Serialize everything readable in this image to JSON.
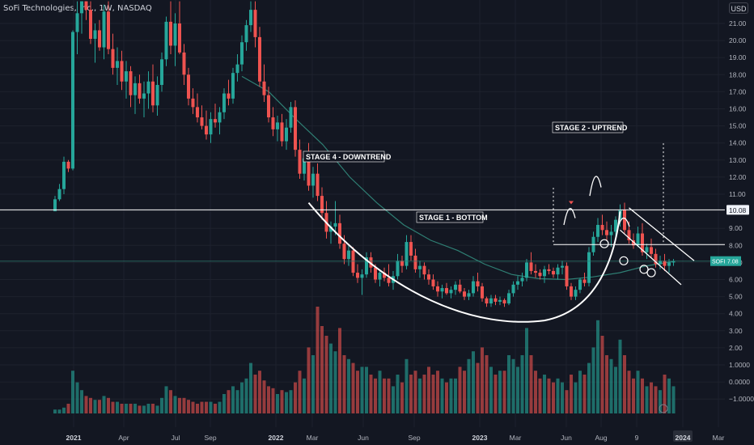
{
  "header": {
    "title": "SoFi Technologies, Inc., 1W, NASDAQ"
  },
  "currency_button": {
    "label": "USD"
  },
  "price_badges": {
    "resistance": "10.08",
    "current": "SOFI",
    "current_sub": "7.08"
  },
  "colors": {
    "up": "#26a69a",
    "down": "#ef5350",
    "background": "#131722",
    "grid": "#1e222d",
    "ma": "#2f7f74",
    "text": "#b2b5be",
    "line": "#ffffff"
  },
  "annotations": {
    "stage4": "STAGE 4 - DOWNTREND",
    "stage1": "STAGE 1 - BOTTOM",
    "stage2": "STAGE 2 - UPTREND"
  },
  "chart_data": {
    "type": "candlestick",
    "title": "SoFi Technologies, Inc., 1W, NASDAQ",
    "x_ticks": [
      "2021",
      "Apr",
      "Jul",
      "Sep",
      "2022",
      "Mar",
      "Jun",
      "Sep",
      "2023",
      "Mar",
      "Jun",
      "Aug",
      "9",
      "2024",
      "Mar"
    ],
    "y_ticks": [
      "21.00",
      "20.00",
      "19.00",
      "18.00",
      "17.00",
      "16.00",
      "15.00",
      "14.00",
      "13.00",
      "12.00",
      "11.00",
      "10.00",
      "9.00",
      "8.00",
      "7.00",
      "6.00",
      "5.00",
      "4.00",
      "3.00",
      "2.00",
      "1.0000",
      "0.0000",
      "−1.0000"
    ],
    "y_range": [
      -1.0,
      22.0
    ],
    "resistance_level": 10.08,
    "secondary_level": 8.05,
    "current_price_level": 7.08,
    "x_ticks_end_indicator": "2024",
    "candles_ohlc": [
      [
        10.0,
        10.9,
        10.2,
        10.7
      ],
      [
        10.7,
        11.6,
        10.6,
        11.3
      ],
      [
        11.3,
        13.2,
        11.0,
        12.9
      ],
      [
        12.9,
        13.0,
        12.3,
        12.5
      ],
      [
        12.5,
        20.6,
        12.4,
        20.5
      ],
      [
        20.5,
        24.5,
        19.2,
        21.6
      ],
      [
        21.6,
        23.8,
        20.4,
        22.8
      ],
      [
        22.8,
        23.5,
        21.2,
        21.8
      ],
      [
        21.8,
        22.6,
        19.8,
        20.1
      ],
      [
        20.1,
        21.0,
        18.7,
        20.6
      ],
      [
        20.6,
        21.2,
        19.4,
        19.6
      ],
      [
        19.6,
        22.1,
        18.9,
        21.7
      ],
      [
        21.7,
        22.6,
        19.2,
        19.5
      ],
      [
        19.5,
        20.4,
        18.0,
        18.4
      ],
      [
        18.4,
        19.6,
        17.4,
        18.8
      ],
      [
        18.8,
        19.4,
        17.1,
        17.6
      ],
      [
        17.6,
        18.8,
        16.6,
        18.2
      ],
      [
        18.2,
        18.5,
        16.1,
        16.8
      ],
      [
        16.8,
        17.9,
        15.7,
        17.5
      ],
      [
        17.5,
        18.0,
        16.3,
        16.6
      ],
      [
        16.6,
        17.6,
        15.5,
        16.9
      ],
      [
        16.9,
        18.2,
        16.0,
        17.6
      ],
      [
        17.6,
        18.6,
        15.8,
        16.2
      ],
      [
        16.2,
        17.9,
        15.6,
        17.4
      ],
      [
        17.4,
        19.3,
        17.0,
        18.9
      ],
      [
        18.9,
        21.4,
        18.5,
        21.1
      ],
      [
        21.1,
        22.8,
        19.2,
        19.7
      ],
      [
        19.7,
        21.6,
        18.5,
        21.0
      ],
      [
        21.0,
        22.6,
        19.2,
        19.3
      ],
      [
        19.3,
        19.8,
        17.4,
        18.0
      ],
      [
        18.0,
        18.4,
        16.2,
        16.6
      ],
      [
        16.6,
        17.2,
        15.7,
        16.1
      ],
      [
        16.1,
        16.9,
        15.2,
        15.5
      ],
      [
        15.5,
        16.2,
        14.8,
        15.0
      ],
      [
        15.0,
        15.9,
        14.2,
        14.5
      ],
      [
        14.5,
        15.8,
        14.0,
        15.4
      ],
      [
        15.4,
        16.3,
        14.9,
        15.2
      ],
      [
        15.2,
        16.1,
        14.5,
        15.8
      ],
      [
        15.8,
        17.2,
        15.4,
        16.9
      ],
      [
        16.9,
        17.7,
        16.2,
        16.6
      ],
      [
        16.6,
        18.4,
        16.3,
        18.1
      ],
      [
        18.1,
        19.2,
        17.6,
        18.6
      ],
      [
        18.6,
        20.3,
        18.2,
        19.9
      ],
      [
        19.9,
        21.2,
        19.4,
        20.9
      ],
      [
        20.9,
        24.4,
        20.5,
        21.8
      ],
      [
        21.8,
        22.8,
        19.6,
        20.2
      ],
      [
        20.2,
        20.8,
        17.3,
        17.6
      ],
      [
        17.6,
        18.6,
        16.4,
        16.8
      ],
      [
        16.8,
        17.3,
        15.2,
        15.5
      ],
      [
        15.5,
        16.1,
        14.4,
        14.8
      ],
      [
        14.8,
        15.6,
        14.1,
        15.2
      ],
      [
        15.2,
        15.7,
        13.8,
        14.1
      ],
      [
        14.1,
        15.4,
        13.6,
        14.9
      ],
      [
        14.9,
        16.4,
        14.6,
        16.1
      ],
      [
        16.1,
        16.5,
        13.2,
        13.6
      ],
      [
        13.6,
        14.2,
        11.9,
        12.2
      ],
      [
        12.2,
        13.4,
        11.8,
        13.1
      ],
      [
        13.1,
        14.0,
        11.2,
        11.5
      ],
      [
        11.5,
        12.6,
        10.8,
        12.2
      ],
      [
        12.2,
        12.8,
        10.6,
        10.9
      ],
      [
        10.9,
        11.4,
        9.5,
        9.9
      ],
      [
        9.9,
        10.6,
        8.4,
        8.8
      ],
      [
        8.8,
        9.4,
        8.1,
        9.1
      ],
      [
        9.1,
        10.6,
        8.6,
        9.3
      ],
      [
        9.3,
        9.8,
        7.8,
        8.1
      ],
      [
        8.1,
        8.6,
        6.9,
        7.2
      ],
      [
        7.2,
        8.0,
        6.8,
        7.7
      ],
      [
        7.7,
        7.9,
        6.2,
        6.4
      ],
      [
        6.4,
        6.9,
        5.8,
        6.1
      ],
      [
        6.1,
        6.6,
        5.1,
        6.3
      ],
      [
        6.3,
        7.6,
        6.1,
        7.3
      ],
      [
        7.3,
        7.6,
        6.4,
        6.7
      ],
      [
        6.7,
        6.9,
        5.8,
        6.0
      ],
      [
        6.0,
        6.6,
        5.6,
        6.4
      ],
      [
        6.4,
        6.7,
        5.9,
        6.1
      ],
      [
        6.1,
        6.9,
        5.6,
        5.8
      ],
      [
        5.8,
        6.5,
        5.4,
        6.2
      ],
      [
        6.2,
        7.5,
        6.0,
        7.1
      ],
      [
        7.1,
        7.4,
        6.4,
        6.8
      ],
      [
        6.8,
        8.6,
        6.6,
        8.2
      ],
      [
        8.2,
        8.6,
        7.1,
        7.4
      ],
      [
        7.4,
        7.8,
        6.4,
        6.6
      ],
      [
        6.6,
        7.1,
        6.1,
        6.8
      ],
      [
        6.8,
        7.0,
        6.0,
        6.3
      ],
      [
        6.3,
        6.6,
        5.7,
        6.0
      ],
      [
        6.0,
        6.3,
        5.4,
        5.6
      ],
      [
        5.6,
        5.9,
        5.0,
        5.3
      ],
      [
        5.3,
        5.7,
        4.9,
        5.5
      ],
      [
        5.5,
        5.8,
        5.1,
        5.2
      ],
      [
        5.2,
        5.6,
        4.9,
        5.4
      ],
      [
        5.4,
        5.9,
        5.1,
        5.7
      ],
      [
        5.7,
        6.0,
        5.2,
        5.3
      ],
      [
        5.3,
        5.5,
        4.8,
        5.0
      ],
      [
        5.0,
        5.4,
        4.8,
        5.2
      ],
      [
        5.2,
        6.2,
        5.0,
        5.9
      ],
      [
        5.9,
        6.4,
        5.3,
        5.6
      ],
      [
        5.6,
        5.8,
        4.7,
        4.9
      ],
      [
        4.9,
        5.0,
        4.4,
        4.6
      ],
      [
        4.6,
        5.1,
        4.4,
        4.9
      ],
      [
        4.9,
        5.1,
        4.5,
        4.7
      ],
      [
        4.7,
        5.0,
        4.5,
        4.8
      ],
      [
        4.8,
        4.9,
        4.4,
        4.6
      ],
      [
        4.6,
        5.4,
        4.5,
        5.2
      ],
      [
        5.2,
        5.9,
        5.0,
        5.7
      ],
      [
        5.7,
        6.2,
        5.4,
        5.9
      ],
      [
        5.9,
        6.4,
        5.6,
        6.1
      ],
      [
        6.1,
        7.2,
        5.9,
        7.0
      ],
      [
        7.0,
        7.6,
        6.3,
        6.5
      ],
      [
        6.5,
        6.9,
        6.1,
        6.4
      ],
      [
        6.4,
        6.6,
        6.0,
        6.2
      ],
      [
        6.2,
        6.8,
        5.8,
        6.6
      ],
      [
        6.6,
        6.9,
        6.3,
        6.5
      ],
      [
        6.5,
        6.7,
        6.1,
        6.3
      ],
      [
        6.3,
        6.9,
        6.0,
        6.7
      ],
      [
        6.7,
        7.1,
        6.3,
        6.8
      ],
      [
        6.8,
        7.0,
        5.4,
        5.6
      ],
      [
        5.6,
        5.8,
        4.8,
        5.0
      ],
      [
        5.0,
        5.6,
        4.8,
        5.4
      ],
      [
        5.4,
        6.1,
        5.2,
        6.0
      ],
      [
        6.0,
        6.4,
        5.6,
        5.8
      ],
      [
        5.8,
        7.9,
        5.6,
        7.6
      ],
      [
        7.6,
        8.8,
        7.4,
        8.5
      ],
      [
        8.5,
        9.6,
        8.2,
        9.2
      ],
      [
        9.2,
        9.8,
        8.6,
        8.9
      ],
      [
        8.9,
        9.4,
        8.3,
        8.6
      ],
      [
        8.6,
        9.2,
        7.9,
        8.8
      ],
      [
        8.8,
        9.7,
        8.4,
        9.5
      ],
      [
        9.5,
        10.4,
        9.1,
        10.1
      ],
      [
        10.1,
        10.5,
        8.7,
        8.9
      ],
      [
        8.9,
        9.4,
        8.1,
        8.3
      ],
      [
        8.3,
        8.7,
        7.8,
        8.0
      ],
      [
        8.0,
        9.1,
        7.9,
        8.7
      ],
      [
        8.7,
        9.3,
        7.4,
        7.6
      ],
      [
        7.6,
        8.1,
        7.2,
        7.9
      ],
      [
        7.9,
        8.4,
        7.3,
        7.5
      ],
      [
        7.5,
        7.8,
        6.7,
        6.9
      ],
      [
        6.9,
        7.4,
        6.6,
        7.1
      ],
      [
        7.1,
        7.5,
        6.5,
        6.8
      ],
      [
        6.8,
        7.2,
        6.4,
        7.0
      ],
      [
        7.0,
        7.2,
        6.8,
        7.08
      ]
    ],
    "moving_average": [
      17.9,
      17.0,
      15.4,
      13.9,
      12.0,
      10.5,
      9.2,
      8.3,
      7.7,
      6.9,
      6.3,
      6.05,
      6.0,
      6.15,
      6.4,
      6.8,
      7.06
    ],
    "volumes": [
      0.02,
      0.02,
      0.03,
      0.05,
      0.22,
      0.16,
      0.12,
      0.09,
      0.08,
      0.07,
      0.07,
      0.09,
      0.08,
      0.06,
      0.06,
      0.05,
      0.05,
      0.05,
      0.05,
      0.04,
      0.04,
      0.05,
      0.05,
      0.04,
      0.08,
      0.14,
      0.12,
      0.09,
      0.08,
      0.08,
      0.07,
      0.06,
      0.05,
      0.06,
      0.06,
      0.06,
      0.05,
      0.06,
      0.1,
      0.12,
      0.14,
      0.12,
      0.16,
      0.18,
      0.26,
      0.2,
      0.22,
      0.17,
      0.14,
      0.13,
      0.1,
      0.12,
      0.11,
      0.12,
      0.16,
      0.22,
      0.18,
      0.34,
      0.3,
      0.55,
      0.45,
      0.4,
      0.36,
      0.32,
      0.44,
      0.3,
      0.28,
      0.26,
      0.22,
      0.24,
      0.24,
      0.2,
      0.18,
      0.22,
      0.18,
      0.18,
      0.14,
      0.2,
      0.16,
      0.28,
      0.2,
      0.22,
      0.18,
      0.2,
      0.24,
      0.2,
      0.22,
      0.18,
      0.16,
      0.18,
      0.18,
      0.24,
      0.22,
      0.28,
      0.32,
      0.26,
      0.34,
      0.3,
      0.24,
      0.2,
      0.22,
      0.22,
      0.3,
      0.28,
      0.24,
      0.3,
      0.44,
      0.3,
      0.22,
      0.18,
      0.2,
      0.18,
      0.16,
      0.18,
      0.16,
      0.12,
      0.2,
      0.16,
      0.22,
      0.2,
      0.26,
      0.34,
      0.48,
      0.4,
      0.3,
      0.28,
      0.24,
      0.38,
      0.3,
      0.22,
      0.18,
      0.22,
      0.18,
      0.14,
      0.16,
      0.14,
      0.12,
      0.2,
      0.18,
      0.14
    ]
  }
}
